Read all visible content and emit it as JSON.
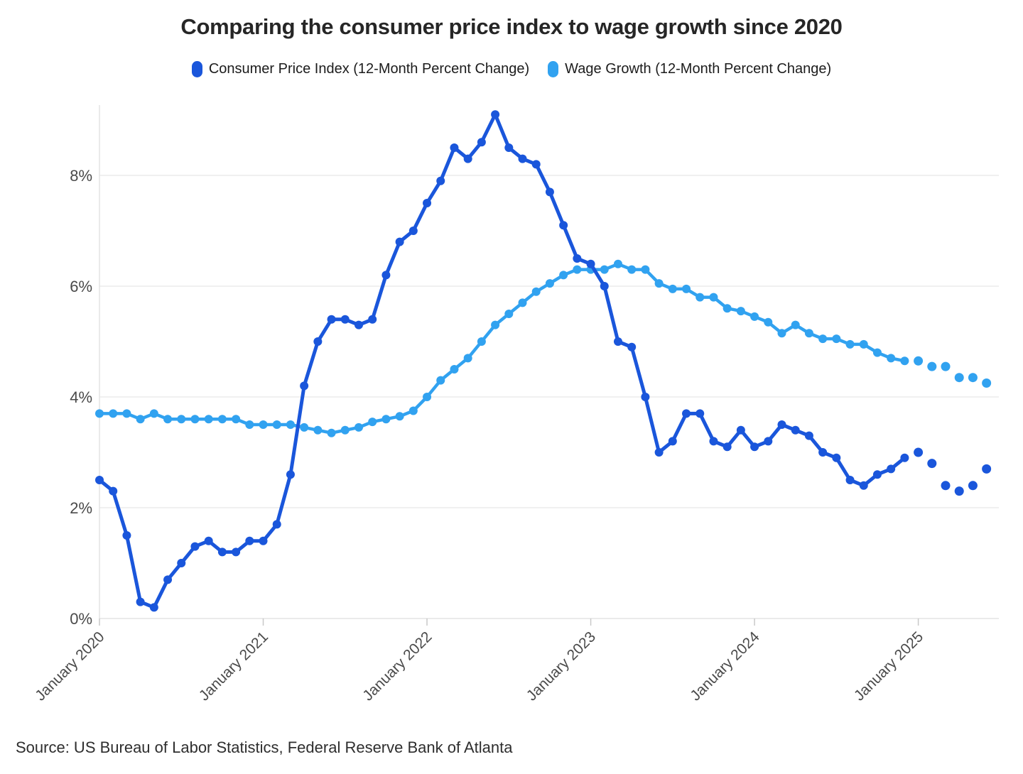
{
  "title": "Comparing the consumer price index to wage growth since 2020",
  "source": "Source: US Bureau of Labor Statistics, Federal Reserve Bank of Atlanta",
  "colors": {
    "cpi": "#1A56DB",
    "wage": "#31A2F0",
    "gridline": "#ECECEC",
    "axis_line": "#E4E4E4",
    "tick_mark": "#C9C9C9",
    "tick_text": "#4A4A4A"
  },
  "chart_data": {
    "type": "line",
    "title": "Comparing the consumer price index to wage growth since 2020",
    "frequency": "monthly",
    "x_start": "January 2020",
    "x_end": "June 2025",
    "grid": "horizontal only",
    "legend_position": "top",
    "y_axis": {
      "unit": "percent",
      "ticks": [
        0,
        2,
        4,
        6,
        8
      ],
      "tick_labels": [
        "0%",
        "2%",
        "4%",
        "6%",
        "8%"
      ],
      "range": [
        0,
        9.2
      ]
    },
    "x_ticks": [
      {
        "label": "January 2020",
        "month": 0
      },
      {
        "label": "January 2021",
        "month": 12
      },
      {
        "label": "January 2022",
        "month": 24
      },
      {
        "label": "January 2023",
        "month": 36
      },
      {
        "label": "January 2024",
        "month": 48
      },
      {
        "label": "January 2025",
        "month": 60
      }
    ],
    "note": "final 6 points of each series (Jan-Jun 2025) are drawn as detached dots without a connecting line",
    "series": [
      {
        "name": "Consumer Price Index (12-Month Percent Change)",
        "color": "#1A56DB",
        "solid_points": 60,
        "values": [
          2.5,
          2.3,
          1.5,
          0.3,
          0.2,
          0.7,
          1.0,
          1.3,
          1.4,
          1.2,
          1.2,
          1.4,
          1.4,
          1.7,
          2.6,
          4.2,
          5.0,
          5.4,
          5.4,
          5.3,
          5.4,
          6.2,
          6.8,
          7.0,
          7.5,
          7.9,
          8.5,
          8.3,
          8.6,
          9.1,
          8.5,
          8.3,
          8.2,
          7.7,
          7.1,
          6.5,
          6.4,
          6.0,
          5.0,
          4.9,
          4.0,
          3.0,
          3.2,
          3.7,
          3.7,
          3.2,
          3.1,
          3.4,
          3.1,
          3.2,
          3.5,
          3.4,
          3.3,
          3.0,
          2.9,
          2.5,
          2.4,
          2.6,
          2.7,
          2.9,
          3.0,
          2.8,
          2.4,
          2.3,
          2.4,
          2.7
        ]
      },
      {
        "name": "Wage Growth (12-Month Percent Change)",
        "color": "#31A2F0",
        "solid_points": 60,
        "values": [
          3.7,
          3.7,
          3.7,
          3.6,
          3.7,
          3.6,
          3.6,
          3.6,
          3.6,
          3.6,
          3.6,
          3.5,
          3.5,
          3.5,
          3.5,
          3.45,
          3.4,
          3.35,
          3.4,
          3.45,
          3.55,
          3.6,
          3.65,
          3.75,
          4.0,
          4.3,
          4.5,
          4.7,
          5.0,
          5.3,
          5.5,
          5.7,
          5.9,
          6.05,
          6.2,
          6.3,
          6.3,
          6.3,
          6.4,
          6.3,
          6.3,
          6.05,
          5.95,
          5.95,
          5.8,
          5.8,
          5.6,
          5.55,
          5.45,
          5.35,
          5.15,
          5.3,
          5.15,
          5.05,
          5.05,
          4.95,
          4.95,
          4.8,
          4.7,
          4.65,
          4.65,
          4.55,
          4.55,
          4.35,
          4.35,
          4.25
        ]
      }
    ]
  }
}
